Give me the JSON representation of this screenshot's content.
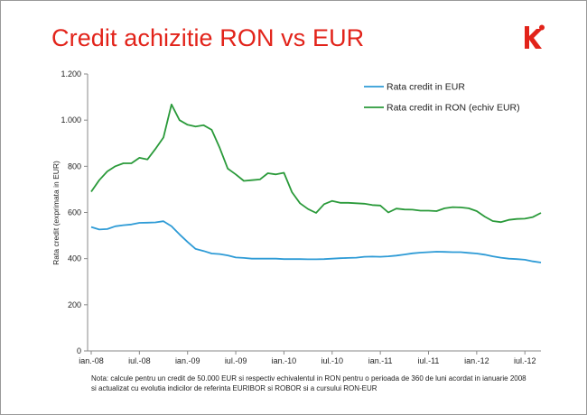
{
  "slide": {
    "title": "Credit achizitie RON vs EUR",
    "logo_letter": "k",
    "accent_color": "#e2231a"
  },
  "chart_data": {
    "type": "line",
    "title": "",
    "xlabel": "",
    "ylabel": "Rata credit (exprimata in EUR)",
    "ylim": [
      0,
      1200
    ],
    "yticks": [
      0,
      200,
      400,
      600,
      800,
      1000,
      1200
    ],
    "ytick_labels": [
      "0",
      "200",
      "400",
      "600",
      "800",
      "1.000",
      "1.200"
    ],
    "xtick_labels": [
      "ian.-08",
      "iul.-08",
      "ian.-09",
      "iul.-09",
      "ian.-10",
      "iul.-10",
      "ian.-11",
      "iul.-11",
      "ian.-12",
      "iul.-12"
    ],
    "xtick_months": [
      0,
      6,
      12,
      18,
      24,
      30,
      36,
      42,
      48,
      54
    ],
    "x_months": [
      0,
      1,
      2,
      3,
      4,
      5,
      6,
      7,
      8,
      9,
      10,
      11,
      12,
      13,
      14,
      15,
      16,
      17,
      18,
      19,
      20,
      21,
      22,
      23,
      24,
      25,
      26,
      27,
      28,
      29,
      30,
      31,
      32,
      33,
      34,
      35,
      36,
      37,
      38,
      39,
      40,
      41,
      42,
      43,
      44,
      45,
      46,
      47,
      48,
      49,
      50,
      51,
      52,
      53,
      54,
      55,
      56
    ],
    "x_range": [
      0,
      56
    ],
    "grid": false,
    "legend_position": "top-right",
    "series": [
      {
        "name": "Rata credit in EUR",
        "color": "#2e9bd6",
        "values": [
          537,
          526,
          528,
          540,
          545,
          548,
          555,
          556,
          557,
          562,
          540,
          505,
          472,
          442,
          433,
          422,
          420,
          414,
          405,
          403,
          400,
          400,
          400,
          400,
          398,
          398,
          398,
          397,
          397,
          398,
          400,
          402,
          403,
          404,
          408,
          409,
          408,
          410,
          413,
          418,
          423,
          426,
          428,
          430,
          429,
          428,
          428,
          425,
          422,
          417,
          410,
          404,
          400,
          398,
          395,
          388,
          383
        ]
      },
      {
        "name": "Rata credit in RON (echiv EUR)",
        "color": "#2a9a3a",
        "values": [
          690,
          740,
          778,
          800,
          813,
          813,
          837,
          830,
          875,
          925,
          1068,
          1000,
          980,
          972,
          978,
          958,
          880,
          790,
          765,
          737,
          740,
          743,
          770,
          765,
          772,
          688,
          640,
          615,
          598,
          636,
          650,
          642,
          642,
          640,
          638,
          632,
          630,
          600,
          617,
          613,
          612,
          608,
          608,
          606,
          618,
          623,
          622,
          618,
          606,
          582,
          563,
          558,
          568,
          572,
          573,
          580,
          598
        ]
      }
    ]
  },
  "note": {
    "line1": "Nota: calcule pentru un credit de 50.000 EUR si respectiv echivalentul in RON pentru o perioada de 360 de luni acordat in ianuarie 2008",
    "line2": "si actualizat cu evolutia indicilor de referinta EURIBOR si ROBOR si a cursului RON-EUR"
  }
}
